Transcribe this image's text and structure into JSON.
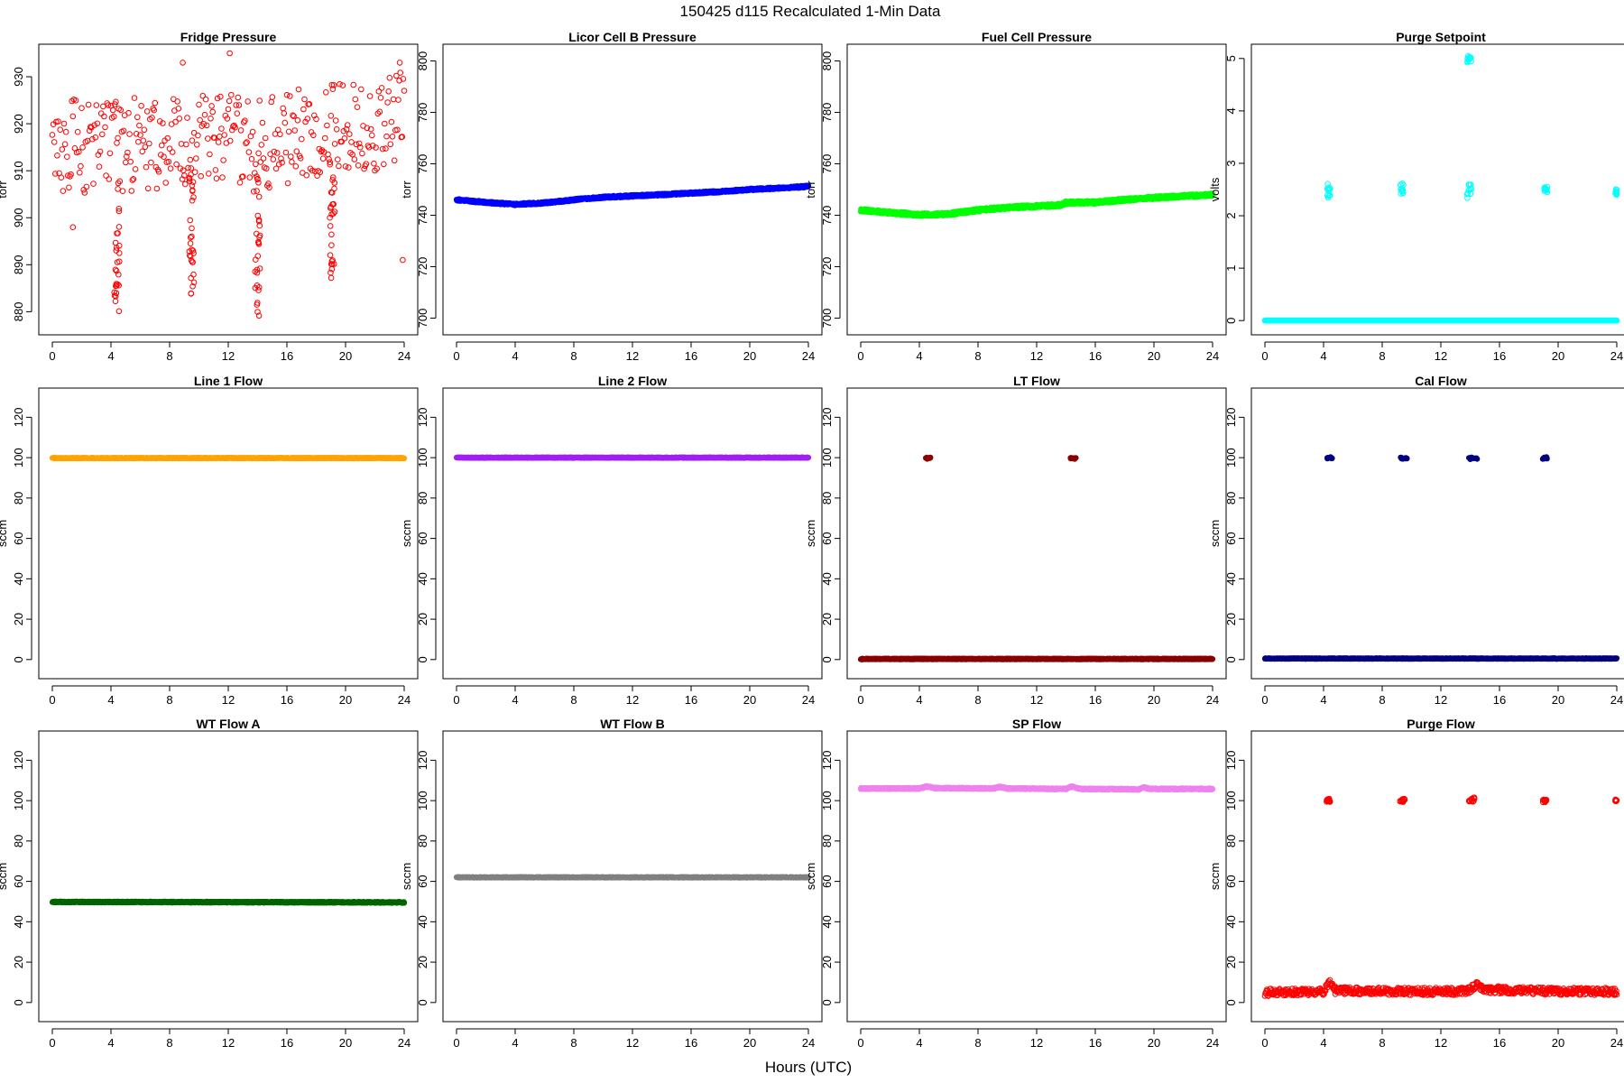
{
  "figure": {
    "title": "150425   d115   Recalculated 1-Min Data",
    "xlabel": "Hours (UTC)"
  },
  "chart_data": [
    {
      "type": "scatter",
      "title": "Fridge Pressure",
      "ylabel": "torr",
      "xlim": [
        0,
        24
      ],
      "ylim": [
        877,
        935
      ],
      "xticks": [
        "0",
        "4",
        "8",
        "12",
        "16",
        "20",
        "24"
      ],
      "yticks": [
        880,
        890,
        900,
        910,
        920,
        930
      ],
      "color": "#ff0000",
      "marker": "open-circle",
      "series": [
        {
          "base": [
            [
              0,
              916
            ],
            [
              2,
              915
            ],
            [
              4,
              915
            ],
            [
              6,
              916
            ],
            [
              8,
              916
            ],
            [
              10,
              916
            ],
            [
              12,
              917
            ],
            [
              14,
              915
            ],
            [
              16,
              917
            ],
            [
              18,
              918
            ],
            [
              20,
              919
            ],
            [
              22,
              920
            ],
            [
              24,
              922
            ]
          ],
          "noise": 10,
          "dips": [
            [
              4.4,
              880
            ],
            [
              9.5,
              883
            ],
            [
              14.0,
              878
            ],
            [
              19.1,
              887
            ]
          ],
          "extremes": [
            [
              12.1,
              935
            ],
            [
              8.9,
              933
            ],
            [
              23.7,
              933
            ],
            [
              1.4,
              898
            ],
            [
              23.9,
              891
            ]
          ],
          "density": 1.0
        }
      ]
    },
    {
      "type": "scatter",
      "title": "Licor Cell B Pressure",
      "ylabel": "torr",
      "xlim": [
        0,
        24
      ],
      "ylim": [
        697,
        803
      ],
      "xticks": [
        "0",
        "4",
        "8",
        "12",
        "16",
        "20",
        "24"
      ],
      "yticks": [
        700,
        720,
        740,
        760,
        780,
        800
      ],
      "color": "#0000ff",
      "marker": "filled-circle",
      "series": [
        {
          "base": [
            [
              0,
              746
            ],
            [
              2,
              745
            ],
            [
              4,
              744.2
            ],
            [
              6,
              744.8
            ],
            [
              8,
              746
            ],
            [
              10,
              747
            ],
            [
              12,
              747.5
            ],
            [
              14,
              748
            ],
            [
              16,
              748.6
            ],
            [
              18,
              749.2
            ],
            [
              20,
              750
            ],
            [
              22,
              750.6
            ],
            [
              24,
              751.2
            ]
          ],
          "noise": 0.4,
          "density": 4
        }
      ]
    },
    {
      "type": "scatter",
      "title": "Fuel Cell Pressure",
      "ylabel": "torr",
      "xlim": [
        0,
        24
      ],
      "ylim": [
        697,
        803
      ],
      "xticks": [
        "0",
        "4",
        "8",
        "12",
        "16",
        "20",
        "24"
      ],
      "yticks": [
        700,
        720,
        740,
        760,
        780,
        800
      ],
      "color": "#00ff00",
      "marker": "filled-circle",
      "series": [
        {
          "base": [
            [
              0,
              742
            ],
            [
              2,
              741
            ],
            [
              4,
              740.2
            ],
            [
              6,
              740.5
            ],
            [
              8,
              742
            ],
            [
              10,
              743
            ],
            [
              12,
              743.5
            ],
            [
              13.7,
              744
            ],
            [
              14,
              745
            ],
            [
              16,
              745
            ],
            [
              18,
              746
            ],
            [
              20,
              746.8
            ],
            [
              22,
              747.4
            ],
            [
              24,
              748
            ]
          ],
          "noise": 0.6,
          "density": 4
        }
      ]
    },
    {
      "type": "scatter",
      "title": "Purge Setpoint",
      "ylabel": "volts",
      "xlim": [
        0,
        24
      ],
      "ylim": [
        -0.1,
        5.1
      ],
      "xticks": [
        "0",
        "4",
        "8",
        "12",
        "16",
        "20",
        "24"
      ],
      "yticks": [
        0,
        1,
        2,
        3,
        4,
        5
      ],
      "color": "#00ffff",
      "marker": "open-circle",
      "series": [
        {
          "base": [
            [
              0,
              0
            ],
            [
              24,
              0
            ]
          ],
          "noise": 0,
          "density": 4,
          "clusters": [
            [
              4.25,
              4.45,
              2.49,
              0.06
            ],
            [
              9.25,
              9.45,
              2.52,
              0.08
            ],
            [
              13.75,
              14.1,
              2.5,
              0.08
            ],
            [
              13.8,
              14.1,
              5.0,
              0.03
            ],
            [
              19.05,
              19.3,
              2.49,
              0.04
            ],
            [
              23.9,
              24,
              2.45,
              0.03
            ]
          ]
        }
      ]
    },
    {
      "type": "scatter",
      "title": "Line 1 Flow",
      "ylabel": "sccm",
      "xlim": [
        0,
        24
      ],
      "ylim": [
        -5,
        130
      ],
      "xticks": [
        "0",
        "4",
        "8",
        "12",
        "16",
        "20",
        "24"
      ],
      "yticks": [
        0,
        20,
        40,
        60,
        80,
        100,
        120
      ],
      "color": "#ffa500",
      "marker": "filled-circle",
      "series": [
        {
          "base": [
            [
              0,
              99.8
            ],
            [
              24,
              99.8
            ]
          ],
          "noise": 0.2,
          "density": 4
        }
      ]
    },
    {
      "type": "scatter",
      "title": "Line 2 Flow",
      "ylabel": "sccm",
      "xlim": [
        0,
        24
      ],
      "ylim": [
        -5,
        130
      ],
      "xticks": [
        "0",
        "4",
        "8",
        "12",
        "16",
        "20",
        "24"
      ],
      "yticks": [
        0,
        20,
        40,
        60,
        80,
        100,
        120
      ],
      "color": "#a020f0",
      "marker": "filled-circle",
      "series": [
        {
          "base": [
            [
              0,
              100
            ],
            [
              24,
              100
            ]
          ],
          "noise": 0.2,
          "density": 4
        }
      ]
    },
    {
      "type": "scatter",
      "title": "LT Flow",
      "ylabel": "sccm",
      "xlim": [
        0,
        24
      ],
      "ylim": [
        -5,
        130
      ],
      "xticks": [
        "0",
        "4",
        "8",
        "12",
        "16",
        "20",
        "24"
      ],
      "yticks": [
        0,
        20,
        40,
        60,
        80,
        100,
        120
      ],
      "color": "#8b0000",
      "marker": "filled-circle",
      "series": [
        {
          "base": [
            [
              0,
              0.3
            ],
            [
              24,
              0.3
            ]
          ],
          "noise": 0.25,
          "density": 4,
          "clusters": [
            [
              4.4,
              4.8,
              99.8,
              0.2
            ],
            [
              14.3,
              14.7,
              99.8,
              0.2
            ]
          ]
        }
      ]
    },
    {
      "type": "scatter",
      "title": "Cal Flow",
      "ylabel": "sccm",
      "xlim": [
        0,
        24
      ],
      "ylim": [
        -5,
        130
      ],
      "xticks": [
        "0",
        "4",
        "8",
        "12",
        "16",
        "20",
        "24"
      ],
      "yticks": [
        0,
        20,
        40,
        60,
        80,
        100,
        120
      ],
      "color": "#000080",
      "marker": "filled-circle",
      "series": [
        {
          "base": [
            [
              0,
              0.5
            ],
            [
              24,
              0.5
            ]
          ],
          "noise": 0.2,
          "density": 4,
          "clusters": [
            [
              4.25,
              4.6,
              99.8,
              0.2
            ],
            [
              9.2,
              9.7,
              99.8,
              0.2
            ],
            [
              13.9,
              14.5,
              99.8,
              0.2
            ],
            [
              18.9,
              19.3,
              99.8,
              0.2
            ]
          ]
        }
      ]
    },
    {
      "type": "scatter",
      "title": "WT Flow A",
      "ylabel": "sccm",
      "xlim": [
        0,
        24
      ],
      "ylim": [
        -5,
        130
      ],
      "xticks": [
        "0",
        "4",
        "8",
        "12",
        "16",
        "20",
        "24"
      ],
      "yticks": [
        0,
        20,
        40,
        60,
        80,
        100,
        120
      ],
      "color": "#006400",
      "marker": "filled-circle",
      "series": [
        {
          "base": [
            [
              0,
              49.8
            ],
            [
              24,
              49.6
            ]
          ],
          "noise": 0.3,
          "density": 4
        }
      ]
    },
    {
      "type": "scatter",
      "title": "WT Flow B",
      "ylabel": "sccm",
      "xlim": [
        0,
        24
      ],
      "ylim": [
        -5,
        130
      ],
      "xticks": [
        "0",
        "4",
        "8",
        "12",
        "16",
        "20",
        "24"
      ],
      "yticks": [
        0,
        20,
        40,
        60,
        80,
        100,
        120
      ],
      "color": "#808080",
      "marker": "filled-circle",
      "series": [
        {
          "base": [
            [
              0,
              62
            ],
            [
              24,
              62
            ]
          ],
          "noise": 0.2,
          "density": 4
        }
      ]
    },
    {
      "type": "scatter",
      "title": "SP Flow",
      "ylabel": "sccm",
      "xlim": [
        0,
        24
      ],
      "ylim": [
        -5,
        130
      ],
      "xticks": [
        "0",
        "4",
        "8",
        "12",
        "16",
        "20",
        "24"
      ],
      "yticks": [
        0,
        20,
        40,
        60,
        80,
        100,
        120
      ],
      "color": "#ee82ee",
      "marker": "filled-circle",
      "series": [
        {
          "base": [
            [
              0,
              106
            ],
            [
              4,
              106
            ],
            [
              4.5,
              107
            ],
            [
              5,
              106.2
            ],
            [
              9,
              106
            ],
            [
              9.5,
              106.8
            ],
            [
              10,
              106
            ],
            [
              14,
              105.8
            ],
            [
              14.4,
              107
            ],
            [
              15,
              105.8
            ],
            [
              19,
              105.6
            ],
            [
              19.3,
              106.6
            ],
            [
              19.7,
              105.8
            ],
            [
              24,
              105.8
            ]
          ],
          "noise": 0.35,
          "density": 4
        }
      ]
    },
    {
      "type": "scatter",
      "title": "Purge Flow",
      "ylabel": "sccm",
      "xlim": [
        0,
        24
      ],
      "ylim": [
        -5,
        130
      ],
      "xticks": [
        "0",
        "4",
        "8",
        "12",
        "16",
        "20",
        "24"
      ],
      "yticks": [
        0,
        20,
        40,
        60,
        80,
        100,
        120
      ],
      "color": "#ff0000",
      "marker": "open-circle",
      "series": [
        {
          "base": [
            [
              0,
              5
            ],
            [
              4,
              5.5
            ],
            [
              4.4,
              10
            ],
            [
              4.8,
              6
            ],
            [
              9,
              5.5
            ],
            [
              13.8,
              5.5
            ],
            [
              14.4,
              9
            ],
            [
              15,
              6.5
            ],
            [
              20,
              5.5
            ],
            [
              24,
              5.5
            ]
          ],
          "noise": 1.8,
          "density": 2,
          "clusters": [
            [
              4.2,
              4.45,
              100,
              0.5
            ],
            [
              9.2,
              9.55,
              100,
              0.5
            ],
            [
              13.9,
              14.3,
              100.3,
              0.5
            ],
            [
              18.95,
              19.2,
              100,
              0.4
            ],
            [
              23.9,
              24,
              100,
              0.3
            ]
          ]
        }
      ]
    }
  ]
}
